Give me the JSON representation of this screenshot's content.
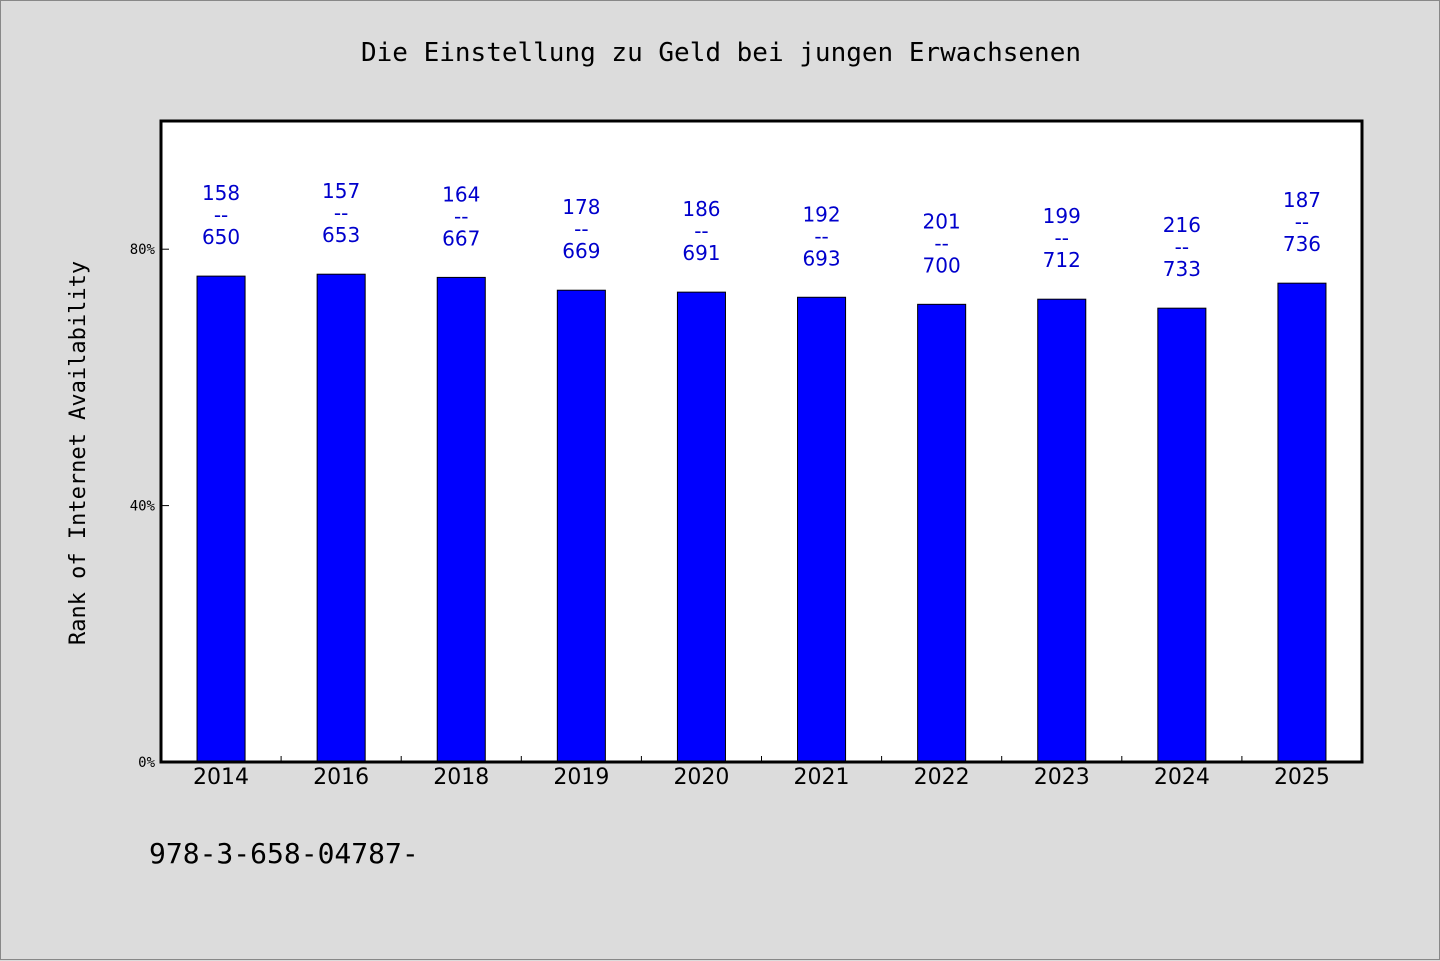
{
  "chart_data": {
    "type": "bar",
    "title": "Die Einstellung zu Geld bei jungen Erwachsenen",
    "xlabel": "",
    "ylabel": "Rank of Internet Availability",
    "ylim": [
      0,
      100
    ],
    "yticks": [
      {
        "value": 0,
        "label": "0%"
      },
      {
        "value": 40,
        "label": "40%"
      },
      {
        "value": 80,
        "label": "80%"
      }
    ],
    "categories": [
      "2014",
      "2016",
      "2018",
      "2019",
      "2020",
      "2021",
      "2022",
      "2023",
      "2024",
      "2025"
    ],
    "values": [
      75.8,
      76.1,
      75.6,
      73.6,
      73.3,
      72.5,
      71.4,
      72.2,
      70.8,
      74.7
    ],
    "data_labels": [
      {
        "top": "158",
        "sep": "--",
        "bottom": "650"
      },
      {
        "top": "157",
        "sep": "--",
        "bottom": "653"
      },
      {
        "top": "164",
        "sep": "--",
        "bottom": "667"
      },
      {
        "top": "178",
        "sep": "--",
        "bottom": "669"
      },
      {
        "top": "186",
        "sep": "--",
        "bottom": "691"
      },
      {
        "top": "192",
        "sep": "--",
        "bottom": "693"
      },
      {
        "top": "201",
        "sep": "--",
        "bottom": "700"
      },
      {
        "top": "199",
        "sep": "--",
        "bottom": "712"
      },
      {
        "top": "216",
        "sep": "--",
        "bottom": "733"
      },
      {
        "top": "187",
        "sep": "--",
        "bottom": "736"
      }
    ],
    "bar_color": "#0000ff",
    "label_color": "#0000cc",
    "plot_background": "#ffffff",
    "page_background": "#dcdcdc",
    "grid": false,
    "legend": "none"
  },
  "footnote": "978-3-658-04787-"
}
